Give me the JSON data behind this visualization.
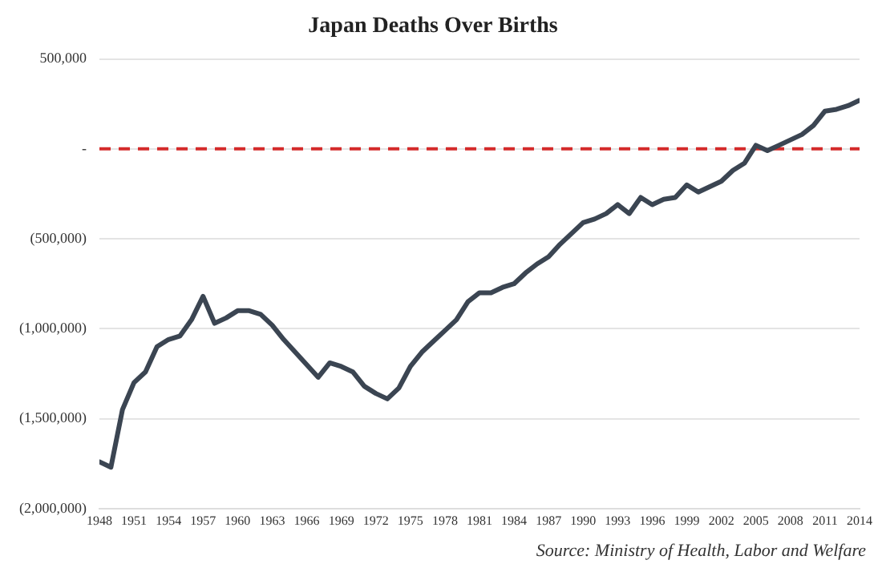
{
  "chart_data": {
    "type": "line",
    "title": "Japan Deaths Over Births",
    "x": [
      1948,
      1949,
      1950,
      1951,
      1952,
      1953,
      1954,
      1955,
      1956,
      1957,
      1958,
      1959,
      1960,
      1961,
      1962,
      1963,
      1964,
      1965,
      1966,
      1967,
      1968,
      1969,
      1970,
      1971,
      1972,
      1973,
      1974,
      1975,
      1976,
      1977,
      1978,
      1979,
      1980,
      1981,
      1982,
      1983,
      1984,
      1985,
      1986,
      1987,
      1988,
      1989,
      1990,
      1991,
      1992,
      1993,
      1994,
      1995,
      1996,
      1997,
      1998,
      1999,
      2000,
      2001,
      2002,
      2003,
      2004,
      2005,
      2006,
      2007,
      2008,
      2009,
      2010,
      2011,
      2012,
      2013,
      2014
    ],
    "series": [
      {
        "color": "#3b4552",
        "values": [
          -1740000,
          -1770000,
          -1450000,
          -1300000,
          -1240000,
          -1100000,
          -1060000,
          -1040000,
          -950000,
          -820000,
          -970000,
          -940000,
          -900000,
          -900000,
          -920000,
          -980000,
          -1060000,
          -1130000,
          -1200000,
          -1270000,
          -1190000,
          -1210000,
          -1240000,
          -1320000,
          -1360000,
          -1390000,
          -1330000,
          -1210000,
          -1130000,
          -1070000,
          -1010000,
          -950000,
          -850000,
          -800000,
          -800000,
          -770000,
          -750000,
          -690000,
          -640000,
          -600000,
          -530000,
          -470000,
          -410000,
          -390000,
          -360000,
          -310000,
          -360000,
          -270000,
          -310000,
          -280000,
          -270000,
          -200000,
          -240000,
          -210000,
          -180000,
          -120000,
          -80000,
          20000,
          -10000,
          20000,
          50000,
          80000,
          130000,
          210000,
          220000,
          240000,
          270000
        ]
      }
    ],
    "xlim": [
      1948,
      2014
    ],
    "xticks": [
      1948,
      1951,
      1954,
      1957,
      1960,
      1963,
      1966,
      1969,
      1972,
      1975,
      1978,
      1981,
      1984,
      1987,
      1990,
      1993,
      1996,
      1999,
      2002,
      2005,
      2008,
      2011,
      2014
    ],
    "ylim": [
      -2000000,
      500000
    ],
    "yticks": [
      {
        "value": -2000000,
        "label": "(2,000,000)"
      },
      {
        "value": -1500000,
        "label": "(1,500,000)"
      },
      {
        "value": -1000000,
        "label": "(1,000,000)"
      },
      {
        "value": -500000,
        "label": "(500,000)"
      },
      {
        "value": 0,
        "label": "-"
      },
      {
        "value": 500000,
        "label": "500,000"
      }
    ],
    "grid": "y",
    "legend": false,
    "marker": "none",
    "line_style": "solid",
    "ref_lines": [
      {
        "axis": "y",
        "value": 0,
        "color": "#d42a2a",
        "line_style": "dashed"
      }
    ],
    "annotations": [
      "Source: Ministry of Health, Labor and Welfare"
    ]
  }
}
